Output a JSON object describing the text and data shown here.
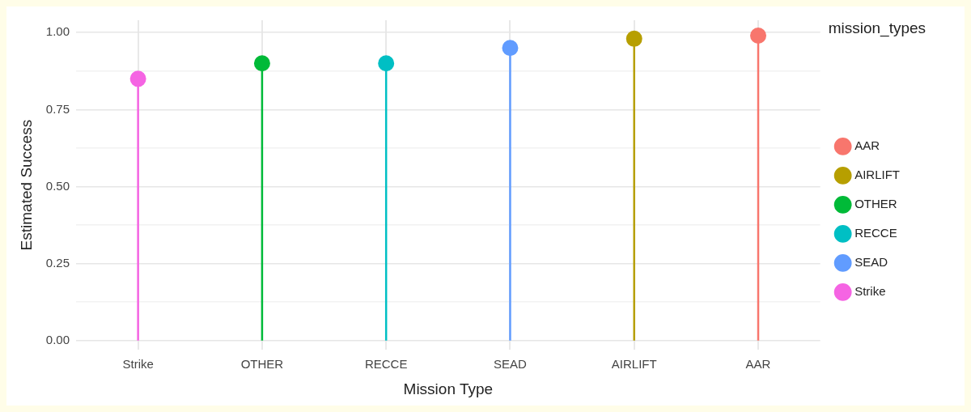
{
  "chart_data": {
    "type": "lollipop",
    "xlabel": "Mission Type",
    "ylabel": "Estimated Success",
    "legend_title": "mission_types",
    "legend": "right",
    "grid": true,
    "marker": "circle",
    "categories": [
      "Strike",
      "OTHER",
      "RECCE",
      "SEAD",
      "AIRLIFT",
      "AAR"
    ],
    "ylim": [
      -0.03,
      1.04
    ],
    "yticks": [
      {
        "value": 0,
        "label": "0.00"
      },
      {
        "value": 0.125,
        "label": null
      },
      {
        "value": 0.25,
        "label": "0.25"
      },
      {
        "value": 0.375,
        "label": null
      },
      {
        "value": 0.5,
        "label": "0.50"
      },
      {
        "value": 0.625,
        "label": null
      },
      {
        "value": 0.75,
        "label": "0.75"
      },
      {
        "value": 0.875,
        "label": null
      },
      {
        "value": 1,
        "label": "1.00"
      }
    ],
    "series": [
      {
        "name": "AAR",
        "color": "#f8766d",
        "values": [
          null,
          null,
          null,
          null,
          null,
          0.99
        ]
      },
      {
        "name": "AIRLIFT",
        "color": "#b79f00",
        "values": [
          null,
          null,
          null,
          null,
          0.98,
          null
        ]
      },
      {
        "name": "OTHER",
        "color": "#00ba38",
        "values": [
          null,
          0.9,
          null,
          null,
          null,
          null
        ]
      },
      {
        "name": "RECCE",
        "color": "#00bfc4",
        "values": [
          null,
          null,
          0.9,
          null,
          null,
          null
        ]
      },
      {
        "name": "SEAD",
        "color": "#619cff",
        "values": [
          null,
          null,
          null,
          0.95,
          null,
          null
        ]
      },
      {
        "name": "Strike",
        "color": "#f564e3",
        "values": [
          0.85,
          null,
          null,
          null,
          null,
          null
        ]
      }
    ]
  }
}
